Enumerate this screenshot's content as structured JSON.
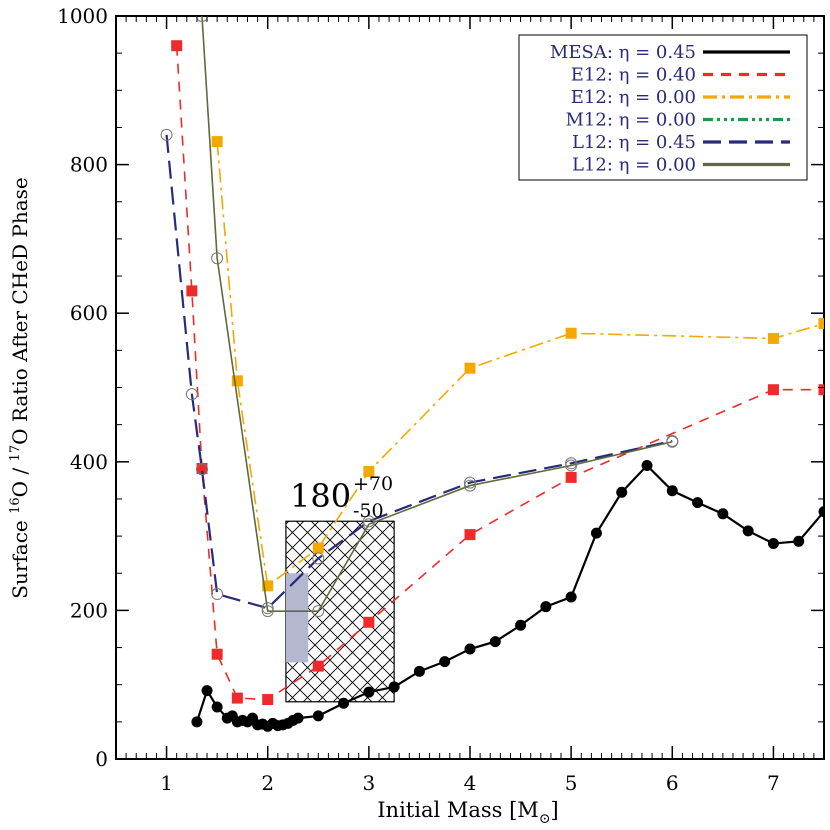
{
  "chart_data": {
    "type": "line",
    "xlabel": "Initial Mass [M",
    "xlabel_sub": "⊙",
    "xlabel_close": "]",
    "ylabel_pre": "Surface ",
    "ylabel_sup1": "16",
    "ylabel_mid": "O / ",
    "ylabel_sup2": "17",
    "ylabel_post": "O Ratio After CHeD Phase",
    "xlim": [
      0.5,
      7.5
    ],
    "ylim": [
      0,
      1000
    ],
    "xticks": [
      "1",
      "2",
      "3",
      "4",
      "5",
      "6",
      "7"
    ],
    "yticks": [
      "0",
      "200",
      "400",
      "600",
      "800",
      "1000"
    ],
    "legend_position": "top-right",
    "legend": [
      {
        "label": "MESA: η = 0.45",
        "color": "#000000",
        "dash": ""
      },
      {
        "label": "E12: η = 0.40",
        "color": "#ee2a2a",
        "dash": "10,8"
      },
      {
        "label": "E12: η = 0.00",
        "color": "#f5a800",
        "dash": "14,5,3,5"
      },
      {
        "label": "M12: η = 0.00",
        "color": "#1a9a4a",
        "dash": "10,4,3,4,3,4,3,4"
      },
      {
        "label": "L12: η = 0.45",
        "color": "#262b7a",
        "dash": "18,8"
      },
      {
        "label": "L12: η = 0.00",
        "color": "#5f6b3a",
        "dash": ""
      }
    ],
    "series": [
      {
        "name": "MESA: η = 0.45",
        "color": "#000000",
        "marker": "circle-filled",
        "x": [
          1.3,
          1.4,
          1.5,
          1.6,
          1.65,
          1.7,
          1.75,
          1.8,
          1.85,
          1.9,
          1.95,
          2.0,
          2.05,
          2.1,
          2.15,
          2.2,
          2.25,
          2.3,
          2.5,
          2.75,
          3.0,
          3.25,
          3.5,
          3.75,
          4.0,
          4.25,
          4.5,
          4.75,
          5.0,
          5.25,
          5.5,
          5.75,
          6.0,
          6.25,
          6.5,
          6.75,
          7.0,
          7.25,
          7.5
        ],
        "y": [
          50,
          92,
          70,
          55,
          58,
          50,
          52,
          50,
          55,
          46,
          47,
          44,
          48,
          45,
          46,
          48,
          52,
          55,
          58,
          75,
          90,
          97,
          118,
          131,
          148,
          158,
          180,
          205,
          218,
          304,
          359,
          395,
          361,
          345,
          330,
          307,
          290,
          293,
          333
        ]
      },
      {
        "name": "E12: η = 0.40",
        "color": "#ee2a2a",
        "marker": "square-filled",
        "x": [
          1.1,
          1.25,
          1.35,
          1.5,
          1.7,
          2.0,
          2.5,
          3.0,
          4.0,
          5.0,
          7.0,
          7.5
        ],
        "y": [
          960,
          630,
          391,
          141,
          82,
          80,
          125,
          184,
          302,
          379,
          497,
          497
        ]
      },
      {
        "name": "E12: η = 0.00",
        "color": "#f5a800",
        "marker": "square-filled",
        "x": [
          1.5,
          1.7,
          2.0,
          2.5,
          3.0,
          4.0,
          5.0,
          7.0,
          7.5
        ],
        "y": [
          831,
          509,
          233,
          284,
          387,
          526,
          573,
          566,
          586
        ]
      },
      {
        "name": "L12: η = 0.45",
        "color": "#262b7a",
        "marker": "circle-open",
        "x": [
          1.0,
          1.25,
          1.35,
          1.5,
          2.0,
          2.5,
          3.0,
          4.0,
          5.0,
          6.0
        ],
        "y": [
          840,
          491,
          390,
          222,
          203,
          270,
          320,
          372,
          398,
          428
        ]
      },
      {
        "name": "L12: η = 0.00",
        "color": "#5f6b3a",
        "marker": "circle-open",
        "x": [
          1.35,
          1.5,
          2.0,
          2.5,
          3.0,
          4.0,
          5.0,
          6.0
        ],
        "y": [
          1000,
          674,
          199,
          199,
          316,
          368,
          395,
          427
        ]
      }
    ],
    "annotations": {
      "value_text": "180",
      "upper_text": "+70",
      "lower_text": "-50",
      "hatched_box": {
        "x0": 2.18,
        "x1": 3.25,
        "y0": 77,
        "y1": 320
      },
      "shaded_box": {
        "x0": 2.18,
        "x1": 2.4,
        "y0": 130,
        "y1": 250
      }
    }
  }
}
